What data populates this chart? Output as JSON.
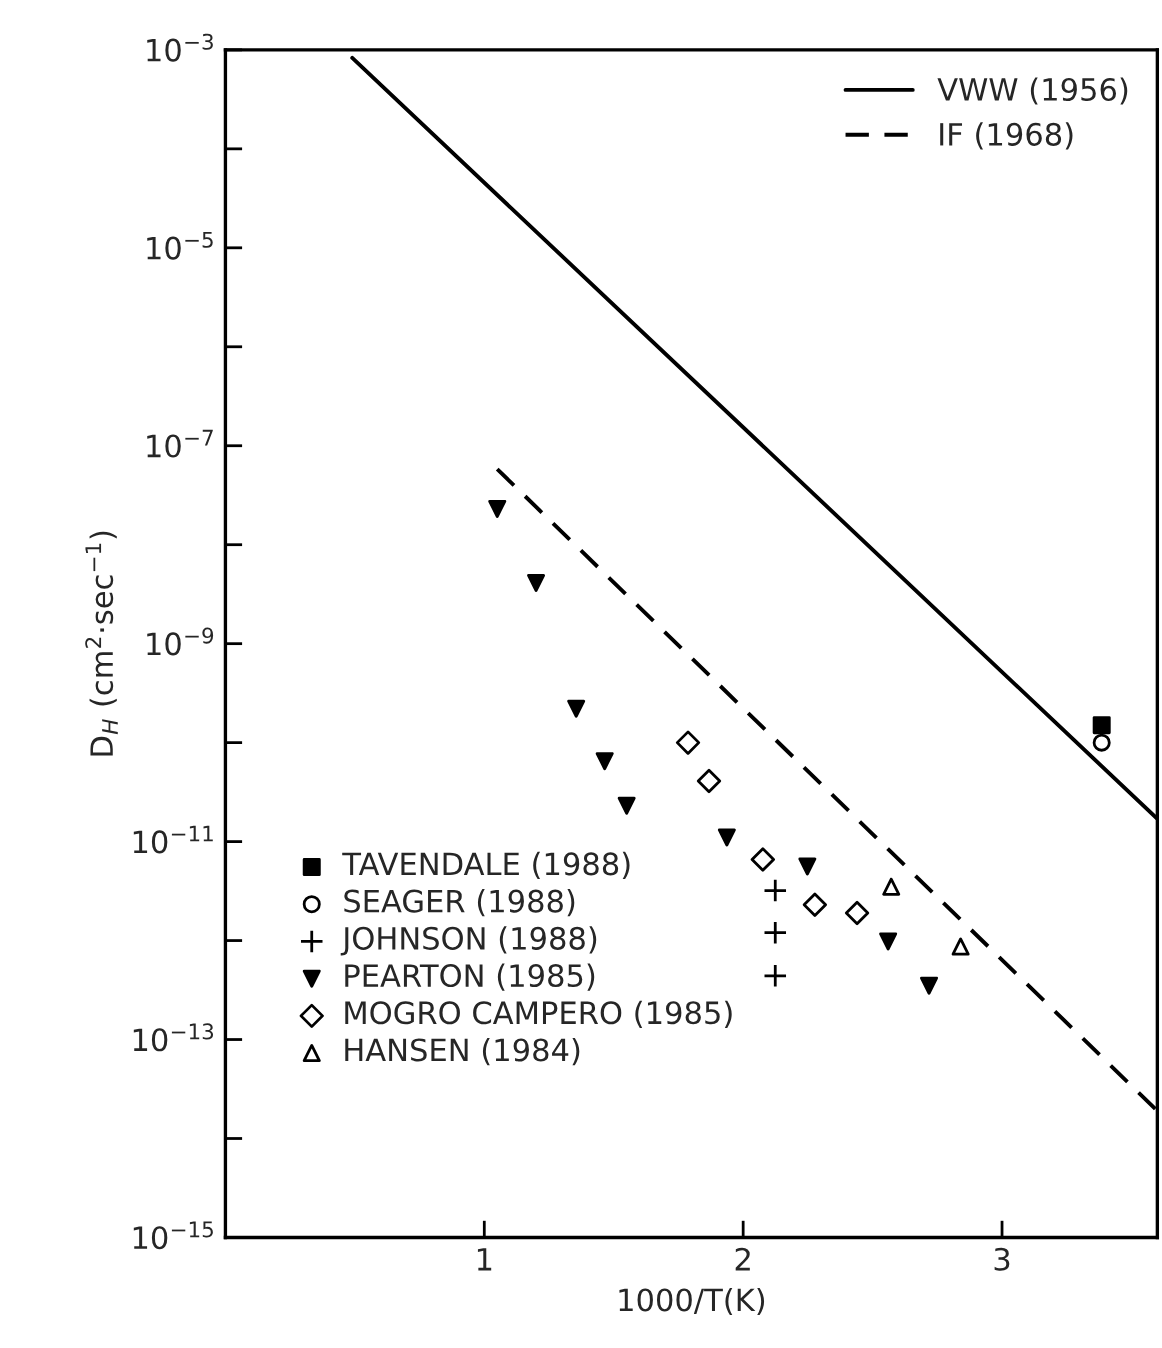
{
  "chart_data": {
    "type": "scatter",
    "xlabel": "1000/T(K)",
    "ylabel": "D$_{H}$ (cm$^{2}$·sec$^{−1}$)",
    "log": "y",
    "xlim": [
      0,
      3.6
    ],
    "xticks": [
      1,
      2,
      3
    ],
    "ylim": [
      1e-15,
      0.001
    ],
    "yticks": [
      {
        "value": 1e-15,
        "label": "10$^{−15}$"
      },
      {
        "value": 1e-14,
        "label": null
      },
      {
        "value": 1e-13,
        "label": "10$^{−13}$"
      },
      {
        "value": 1e-12,
        "label": null
      },
      {
        "value": 1e-11,
        "label": "10$^{−11}$"
      },
      {
        "value": 1e-10,
        "label": null
      },
      {
        "value": 1e-09,
        "label": "10$^{−9}$"
      },
      {
        "value": 1e-08,
        "label": null
      },
      {
        "value": 1e-07,
        "label": "10$^{−7}$"
      },
      {
        "value": 1e-06,
        "label": null
      },
      {
        "value": 1e-05,
        "label": "10$^{−5}$"
      },
      {
        "value": 0.0001,
        "label": null
      },
      {
        "value": 0.001,
        "label": "10$^{−3}$"
      }
    ],
    "grid": false,
    "legend": "top right",
    "series": [
      {
        "name": "VWW (1956)",
        "type": "line",
        "line_style": "solid",
        "color": "#000000",
        "x": [
          0.49,
          3.6
        ],
        "values": [
          0.00083,
          1.7e-11
        ]
      },
      {
        "name": "IF (1968)",
        "type": "line",
        "line_style": "dashed",
        "color": "#000000",
        "x": [
          1.05,
          3.6
        ],
        "values": [
          5.8e-08,
          1.9e-14
        ]
      },
      {
        "name": "TAVENDALE (1988)",
        "marker": "square",
        "color": "#000000",
        "x": [
          3.385
        ],
        "values": [
          1.5e-10
        ]
      },
      {
        "name": "SEAGER (1988)",
        "marker": "circle",
        "color": "#000000",
        "x": [
          3.385
        ],
        "values": [
          1e-10
        ]
      },
      {
        "name": "JOHNSON (1988)",
        "marker": "cross",
        "color": "#000000",
        "x": [
          2.124,
          2.124,
          2.124
        ],
        "values": [
          3.2e-12,
          1.2e-12,
          4.4e-13
        ]
      },
      {
        "name": "PEARTON (1985)",
        "marker": "triangle_down",
        "color": "#000000",
        "x": [
          1.05,
          1.2,
          1.355,
          1.465,
          1.55,
          1.937,
          2.248,
          2.56,
          2.718
        ],
        "values": [
          2.3e-08,
          4.1e-09,
          2.2e-10,
          6.5e-11,
          2.3e-11,
          1.1e-11,
          5.6e-12,
          9.8e-13,
          3.5e-13
        ]
      },
      {
        "name": "MOGRO CAMPERO (1985)",
        "marker": "diamond",
        "color": "#000000",
        "x": [
          1.787,
          1.868,
          2.076,
          2.277,
          2.44
        ],
        "values": [
          1e-10,
          4.1e-11,
          6.6e-12,
          2.3e-12,
          1.9e-12
        ]
      },
      {
        "name": "HANSEN (1984)",
        "marker": "triangle",
        "color": "#000000",
        "x": [
          2.572,
          2.84
        ],
        "values": [
          3.5e-12,
          8.7e-13
        ]
      }
    ]
  }
}
